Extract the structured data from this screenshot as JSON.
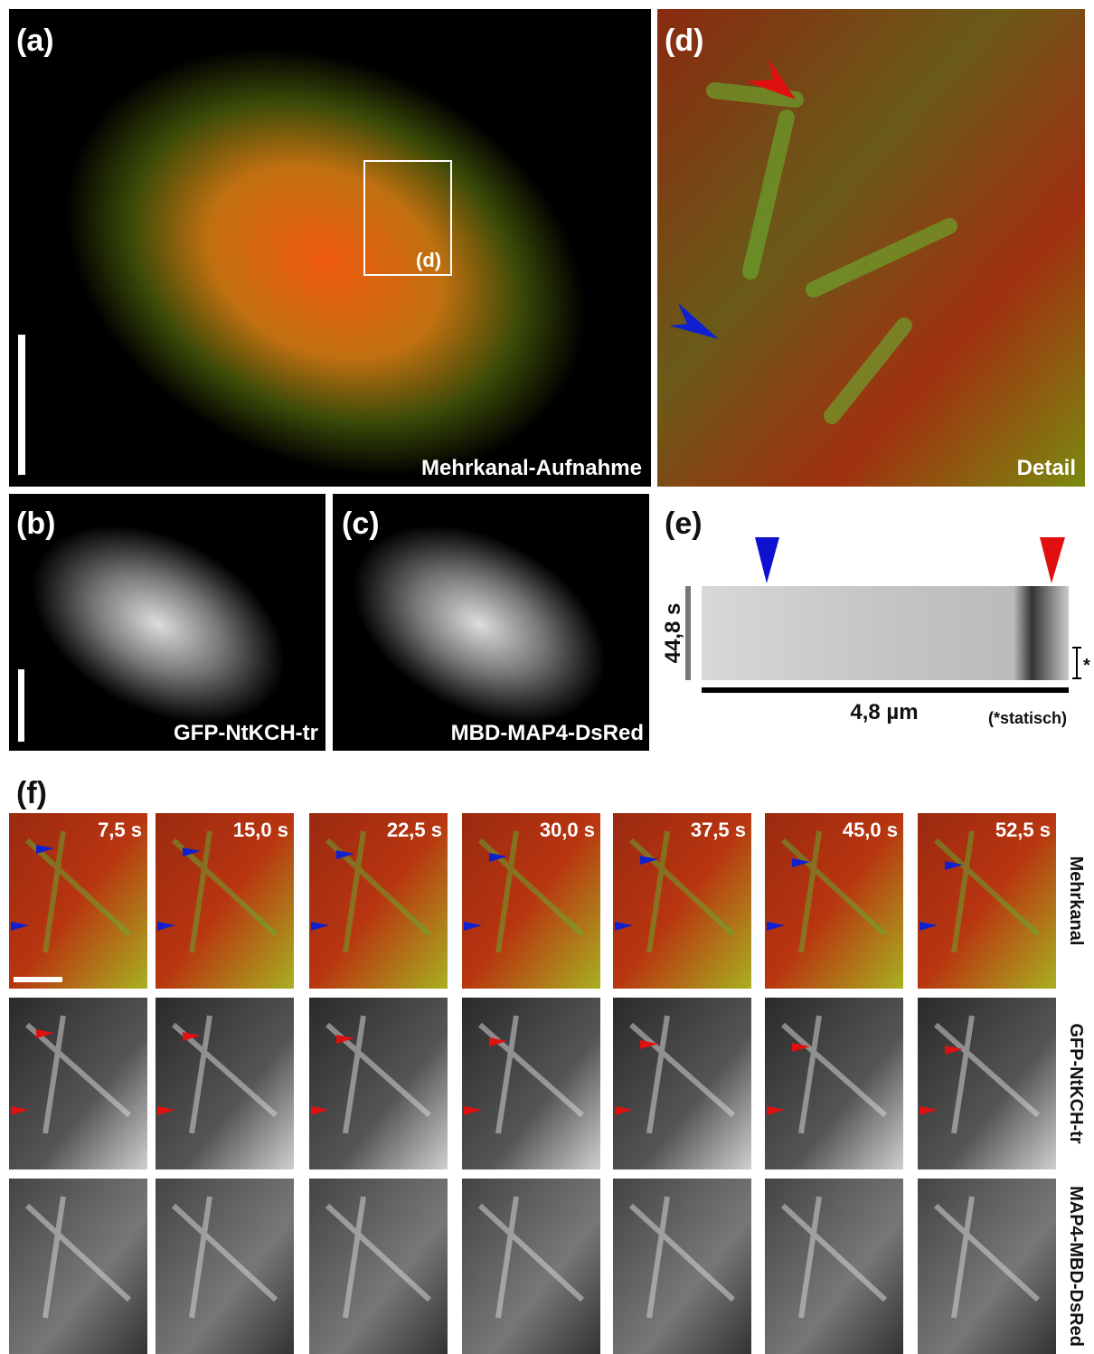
{
  "panels": {
    "a": {
      "label": "(a)",
      "caption": "Mehrkanal-Aufnahme",
      "inset": "(d)"
    },
    "d": {
      "label": "(d)",
      "caption": "Detail"
    },
    "b": {
      "label": "(b)",
      "caption": "GFP-NtKCH-tr"
    },
    "c": {
      "label": "(c)",
      "caption": "MBD-MAP4-DsRed"
    },
    "e": {
      "label": "(e)",
      "ylabel": "44,8 s",
      "xlabel": "4,8 µm",
      "note": "(*statisch)",
      "star": "*"
    },
    "f": {
      "label": "(f)",
      "times": [
        "7,5 s",
        "15,0 s",
        "22,5 s",
        "30,0 s",
        "37,5 s",
        "45,0 s",
        "52,5 s"
      ],
      "rows": [
        "Mehrkanal",
        "GFP-NtKCH-tr",
        "MAP4-MBD-DsRed"
      ]
    }
  }
}
